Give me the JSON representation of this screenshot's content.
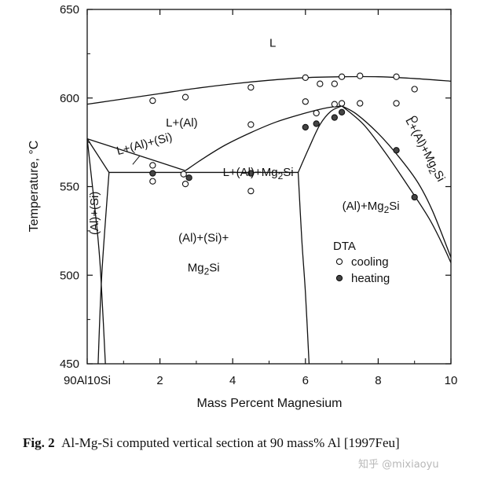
{
  "chart_data": {
    "type": "scatter",
    "title": "Al-Mg-Si computed vertical section at 90 mass% Al",
    "xlabel": "Mass Percent Magnesium",
    "ylabel": "Temperature, °C",
    "xlim": [
      0,
      10
    ],
    "ylim": [
      450,
      650
    ],
    "x_ticks": [
      {
        "value": 0,
        "label": "90Al10Si"
      },
      {
        "value": 2,
        "label": "2"
      },
      {
        "value": 4,
        "label": "4"
      },
      {
        "value": 6,
        "label": "6"
      },
      {
        "value": 8,
        "label": "8"
      },
      {
        "value": 10,
        "label": "10"
      }
    ],
    "y_ticks": [
      450,
      500,
      550,
      600,
      650
    ],
    "phase_boundaries": [
      {
        "name": "liquidus-al",
        "points": [
          [
            0,
            596.5
          ],
          [
            1,
            599.5
          ],
          [
            2,
            602.5
          ],
          [
            3,
            605.5
          ],
          [
            4,
            608
          ],
          [
            5,
            610
          ],
          [
            6,
            611.5
          ],
          [
            7,
            612
          ],
          [
            8,
            612
          ],
          [
            9,
            611
          ],
          [
            10,
            609.5
          ]
        ]
      },
      {
        "name": "liquidus-si",
        "points": [
          [
            0,
            577
          ],
          [
            0.6,
            573
          ],
          [
            1.5,
            567
          ],
          [
            2.7,
            559
          ]
        ]
      },
      {
        "name": "liquidus-mg2si-left",
        "points": [
          [
            2.7,
            559
          ],
          [
            3.2,
            566
          ],
          [
            3.8,
            573.5
          ],
          [
            4.5,
            580.5
          ],
          [
            5.2,
            586.5
          ],
          [
            6,
            591.5
          ],
          [
            6.6,
            594.5
          ],
          [
            7,
            595.5
          ]
        ]
      },
      {
        "name": "eutectic-al-si-mg2si",
        "points": [
          [
            0.6,
            558
          ],
          [
            5.8,
            558
          ]
        ]
      },
      {
        "name": "eutectic-valley-right",
        "points": [
          [
            5.8,
            558
          ],
          [
            6.1,
            572
          ],
          [
            6.4,
            585
          ],
          [
            6.7,
            592.5
          ],
          [
            7,
            595.5
          ]
        ]
      },
      {
        "name": "solvus-upper",
        "points": [
          [
            7,
            595.5
          ],
          [
            7.4,
            591
          ],
          [
            8,
            580
          ],
          [
            8.6,
            566
          ],
          [
            9.1,
            552
          ],
          [
            9.5,
            536
          ],
          [
            10,
            510
          ]
        ]
      },
      {
        "name": "solvus-lower",
        "points": [
          [
            7,
            595.5
          ],
          [
            7.6,
            585
          ],
          [
            8.2,
            569
          ],
          [
            8.8,
            551
          ],
          [
            9.4,
            532
          ],
          [
            9.8,
            516
          ],
          [
            10,
            507
          ]
        ]
      },
      {
        "name": "solvus-al-si",
        "points": [
          [
            0,
            577
          ],
          [
            0.6,
            558
          ]
        ]
      },
      {
        "name": "solidus-al-si-left",
        "points": [
          [
            0,
            577
          ],
          [
            0.3,
            520
          ],
          [
            0.4,
            490
          ],
          [
            0.5,
            450
          ]
        ]
      },
      {
        "name": "solidus-al-si-right",
        "points": [
          [
            0.6,
            558
          ],
          [
            0.4,
            500
          ],
          [
            0.3,
            450
          ]
        ]
      },
      {
        "name": "solvus-mg2si",
        "points": [
          [
            5.8,
            558
          ],
          [
            5.9,
            520
          ],
          [
            6,
            490
          ],
          [
            6.1,
            450
          ]
        ]
      }
    ],
    "series": [
      {
        "name": "cooling",
        "marker": "open-circle",
        "points": [
          [
            1.8,
            598.5
          ],
          [
            2.7,
            600.5
          ],
          [
            4.5,
            606
          ],
          [
            6,
            611.5
          ],
          [
            6.4,
            608
          ],
          [
            6.8,
            608
          ],
          [
            7,
            612
          ],
          [
            7.5,
            612.5
          ],
          [
            8.5,
            612
          ],
          [
            9,
            605
          ],
          [
            6,
            598
          ],
          [
            6.8,
            596.5
          ],
          [
            7,
            597
          ],
          [
            7.5,
            597
          ],
          [
            8.5,
            597
          ],
          [
            6.3,
            591.5
          ],
          [
            9,
            588
          ],
          [
            4.5,
            585
          ],
          [
            1.8,
            562
          ],
          [
            2.65,
            557
          ],
          [
            2.7,
            551.5
          ],
          [
            1.8,
            553
          ],
          [
            4.5,
            547.5
          ]
        ]
      },
      {
        "name": "heating",
        "marker": "filled-circle",
        "points": [
          [
            1.8,
            557.5
          ],
          [
            2.8,
            555
          ],
          [
            4.5,
            557.5
          ],
          [
            6,
            583.5
          ],
          [
            6.3,
            585.5
          ],
          [
            6.8,
            589
          ],
          [
            7,
            592
          ],
          [
            8.5,
            570.5
          ],
          [
            9,
            544
          ]
        ]
      }
    ],
    "region_labels": [
      {
        "text": "L",
        "x": 5.1,
        "y": 629
      },
      {
        "text": "L+(Al)",
        "x": 2.6,
        "y": 584
      },
      {
        "text": "L+(Al)+(Si)",
        "x": 1.6,
        "y": 572,
        "rotation": -15
      },
      {
        "text": "L+(Al)+Mg2Si",
        "x": 4.7,
        "y": 556
      },
      {
        "text": "(Al)+(Si)",
        "x": 0.3,
        "y": 535,
        "rotation": -90
      },
      {
        "text": "(Al)+(Si)+",
        "x": 3.2,
        "y": 519
      },
      {
        "text": "Mg2Si",
        "x": 3.2,
        "y": 502
      },
      {
        "text": "(Al)+Mg2Si",
        "x": 7.8,
        "y": 537
      },
      {
        "text": "L+(Al)+Mg2Si",
        "x": 9.2,
        "y": 570,
        "rotation": 62
      }
    ],
    "legend": {
      "title": "DTA",
      "entries": [
        "cooling",
        "heating"
      ],
      "position": "bottom-right"
    }
  },
  "caption": {
    "label": "Fig. 2",
    "text": "Al-Mg-Si computed vertical section at 90 mass% Al [1997Feu]"
  },
  "watermark": "知乎 @mixiaoyu"
}
